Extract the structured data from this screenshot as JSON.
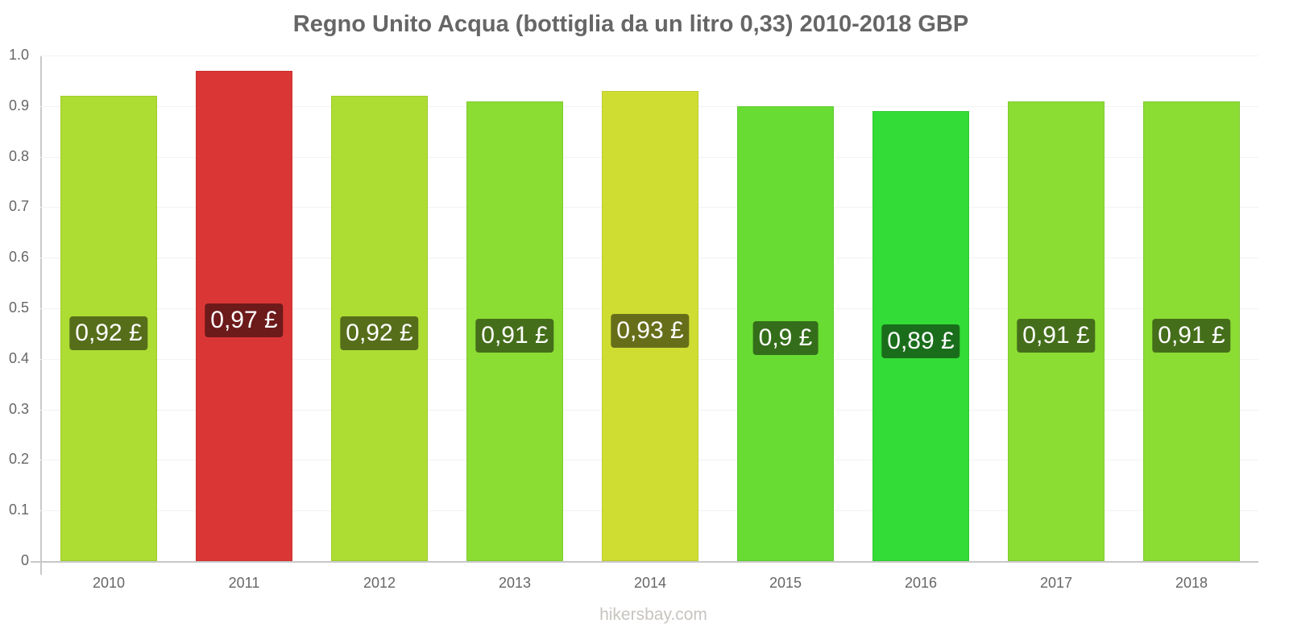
{
  "chart_data": {
    "type": "bar",
    "title": "Regno Unito Acqua (bottiglia da un litro 0,33) 2010-2018 GBP",
    "xlabel": "",
    "ylabel": "",
    "ylim": [
      0,
      1.0
    ],
    "yticks": [
      "0",
      "0.1",
      "0.2",
      "0.3",
      "0.4",
      "0.5",
      "0.6",
      "0.7",
      "0.8",
      "0.9",
      "1.0"
    ],
    "grid": true,
    "categories": [
      "2010",
      "2011",
      "2012",
      "2013",
      "2014",
      "2015",
      "2016",
      "2017",
      "2018"
    ],
    "values": [
      0.92,
      0.97,
      0.92,
      0.91,
      0.93,
      0.9,
      0.89,
      0.91,
      0.91
    ],
    "data_labels": [
      "0,92 £",
      "0,97 £",
      "0,92 £",
      "0,91 £",
      "0,93 £",
      "0,9 £",
      "0,89 £",
      "0,91 £",
      "0,91 £"
    ],
    "bar_colors": [
      "#addd33",
      "#db3636",
      "#addd33",
      "#8bdc33",
      "#cfdd33",
      "#69dc33",
      "#33dc36",
      "#8bdc33",
      "#8bdc33"
    ],
    "label_colors": [
      "#566e1a",
      "#6d1a1a",
      "#566e1a",
      "#456e1a",
      "#676e1a",
      "#346e1a",
      "#1a6e1b",
      "#456e1a",
      "#456e1a"
    ]
  },
  "footer": "hikersbay.com"
}
